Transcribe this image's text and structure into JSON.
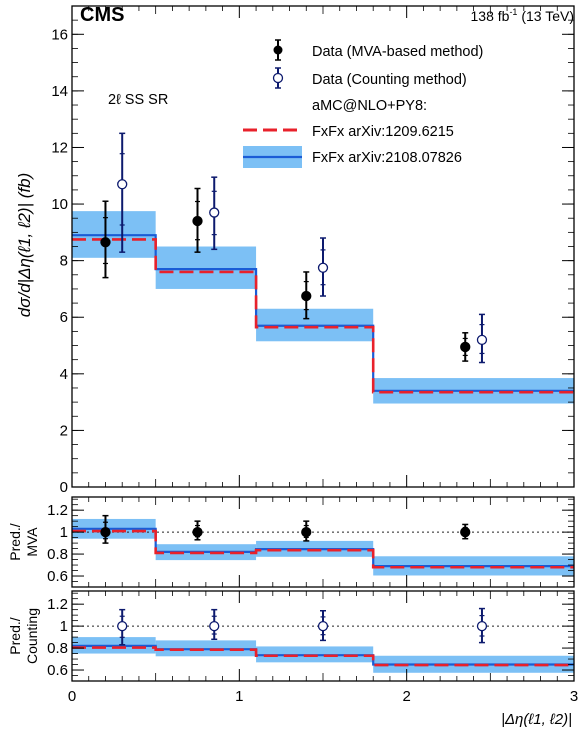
{
  "header": {
    "experiment": "CMS",
    "lumi": "138 fb",
    "lumi_sup": "-1",
    "energy": " (13 TeV)"
  },
  "region_label": "2ℓ SS SR",
  "legend": {
    "data_mva": "Data (MVA-based method)",
    "data_counting": "Data (Counting method)",
    "generator": "aMC@NLO+PY8:",
    "pred_1209": "FxFx arXiv:1209.6215",
    "pred_2108": "FxFx arXiv:2108.07826"
  },
  "colors": {
    "red_pred": "#e8212b",
    "blue_pred": "#1a5cd6",
    "blue_band": "#7cc0f5",
    "counting_marker": "#0d1a6e"
  },
  "chart_data": [
    {
      "type": "line",
      "panel": "main",
      "ylabel": "dσ/d|Δη(ℓ1, ℓ2)| (fb)",
      "ylim": [
        0,
        17
      ],
      "yticks": [
        0,
        2,
        4,
        6,
        8,
        10,
        12,
        14,
        16
      ],
      "xlim": [
        0,
        3
      ],
      "bin_edges": [
        0,
        0.5,
        1.1,
        1.8,
        3.0
      ],
      "series": [
        {
          "name": "FxFx arXiv:1209.6215",
          "style": "step-dashed",
          "values": [
            8.75,
            7.6,
            5.65,
            3.35
          ]
        },
        {
          "name": "FxFx arXiv:2108.07826",
          "style": "step-band",
          "values": [
            8.9,
            7.7,
            5.7,
            3.4
          ],
          "band_low": [
            8.1,
            7.0,
            5.15,
            2.95
          ],
          "band_high": [
            9.75,
            8.5,
            6.3,
            3.85
          ]
        },
        {
          "name": "Data (MVA-based method)",
          "style": "points-filled",
          "x": [
            0.2,
            0.75,
            1.4,
            2.35
          ],
          "y": [
            8.65,
            9.4,
            6.75,
            4.95
          ],
          "err_low": [
            1.25,
            1.1,
            0.8,
            0.5
          ],
          "err_high": [
            1.45,
            1.15,
            0.85,
            0.5
          ]
        },
        {
          "name": "Data (Counting method)",
          "style": "points-open",
          "x": [
            0.3,
            0.85,
            1.5,
            2.45
          ],
          "y": [
            10.7,
            9.7,
            7.75,
            5.2
          ],
          "err_low": [
            2.4,
            1.3,
            1.0,
            0.8
          ],
          "err_high": [
            1.8,
            1.25,
            1.05,
            0.9
          ]
        }
      ]
    },
    {
      "type": "line",
      "panel": "ratio-mva",
      "ylabel_top": "Pred./",
      "ylabel_bottom": "MVA",
      "ylim": [
        0.5,
        1.32
      ],
      "yticks": [
        0.6,
        0.8,
        1.0,
        1.2
      ],
      "ytick_labels": [
        "0.6",
        "0.8",
        "1",
        "1.2"
      ],
      "reference": 1.0,
      "xlim": [
        0,
        3
      ],
      "bin_edges": [
        0,
        0.5,
        1.1,
        1.8,
        3.0
      ],
      "series": [
        {
          "name": "FxFx arXiv:1209.6215",
          "style": "step-dashed",
          "values": [
            1.01,
            0.81,
            0.835,
            0.68
          ]
        },
        {
          "name": "FxFx arXiv:2108.07826",
          "style": "step-band",
          "values": [
            1.03,
            0.82,
            0.845,
            0.69
          ],
          "band_low": [
            0.94,
            0.745,
            0.775,
            0.605
          ],
          "band_high": [
            1.12,
            0.89,
            0.92,
            0.78
          ]
        },
        {
          "name": "Data (MVA-based method)",
          "style": "points-filled",
          "x": [
            0.2,
            0.75,
            1.4,
            2.35
          ],
          "y": [
            1.0,
            1.0,
            1.0,
            1.0
          ],
          "err_low": [
            0.1,
            0.07,
            0.08,
            0.06
          ],
          "err_high": [
            0.15,
            0.1,
            0.1,
            0.07
          ]
        }
      ]
    },
    {
      "type": "line",
      "panel": "ratio-counting",
      "ylabel_top": "Pred./",
      "ylabel_bottom": "Counting",
      "ylim": [
        0.5,
        1.32
      ],
      "yticks": [
        0.6,
        0.8,
        1.0,
        1.2
      ],
      "ytick_labels": [
        "0.6",
        "0.8",
        "1",
        "1.2"
      ],
      "reference": 1.0,
      "xlabel": "|Δη(ℓ1, ℓ2)|",
      "xlim": [
        0,
        3
      ],
      "xticks": [
        0,
        1,
        2,
        3
      ],
      "bin_edges": [
        0,
        0.5,
        1.1,
        1.8,
        3.0
      ],
      "series": [
        {
          "name": "FxFx arXiv:1209.6215",
          "style": "step-dashed",
          "values": [
            0.805,
            0.785,
            0.73,
            0.645
          ]
        },
        {
          "name": "FxFx arXiv:2108.07826",
          "style": "step-band",
          "values": [
            0.82,
            0.79,
            0.735,
            0.65
          ],
          "band_low": [
            0.75,
            0.725,
            0.67,
            0.575
          ],
          "band_high": [
            0.9,
            0.87,
            0.815,
            0.73
          ]
        },
        {
          "name": "Data (Counting method)",
          "style": "points-open",
          "x": [
            0.3,
            0.85,
            1.5,
            2.45
          ],
          "y": [
            1.0,
            1.0,
            1.0,
            1.0
          ],
          "err_low": [
            0.17,
            0.12,
            0.13,
            0.15
          ],
          "err_high": [
            0.15,
            0.15,
            0.14,
            0.16
          ]
        }
      ]
    }
  ]
}
